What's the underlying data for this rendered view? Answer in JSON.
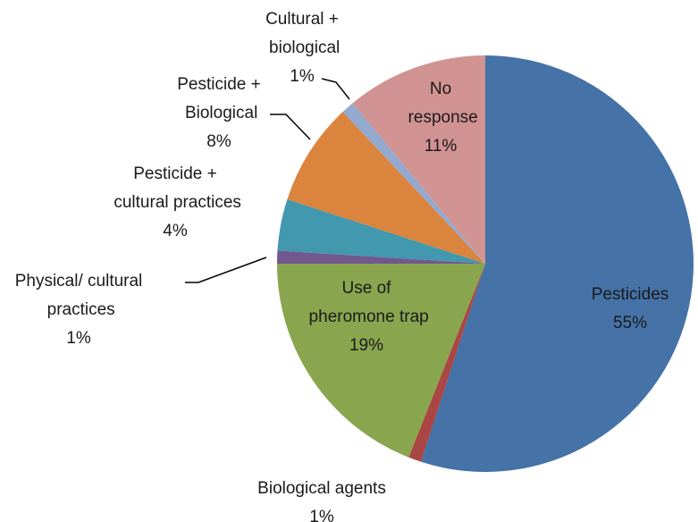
{
  "chart_data": {
    "type": "pie",
    "categories": [
      "Pesticides",
      "Biological agents",
      "Use of pheromone trap",
      "Physical/ cultural practices",
      "Pesticide + cultural practices",
      "Pesticide + Biological",
      "Cultural + biological",
      "No response"
    ],
    "values": [
      55,
      1,
      19,
      1,
      4,
      8,
      1,
      11
    ],
    "value_labels": [
      "55%",
      "1%",
      "19%",
      "1%",
      "4%",
      "8%",
      "1%",
      "11%"
    ],
    "colors": [
      "#4572a7",
      "#aa4643",
      "#89a54e",
      "#71588f",
      "#4198af",
      "#db843d",
      "#93a9cf",
      "#d19392"
    ]
  }
}
